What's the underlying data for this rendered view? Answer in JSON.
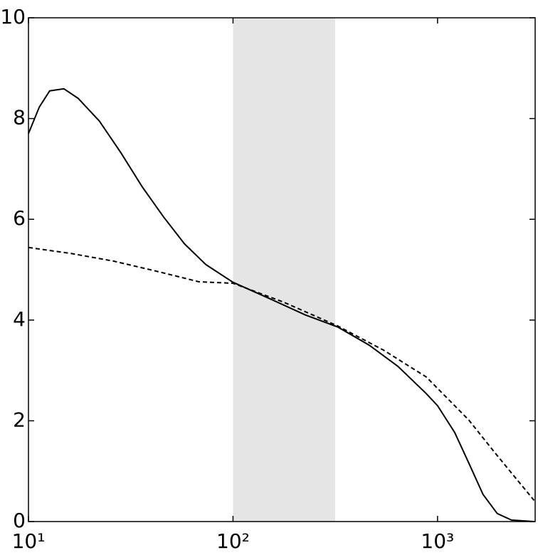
{
  "chart_data": {
    "type": "line",
    "xscale": "log",
    "xlim": [
      10,
      3000
    ],
    "ylim": [
      0,
      10
    ],
    "xticks": [
      {
        "value": 10,
        "label": "10¹"
      },
      {
        "value": 100,
        "label": "10²"
      },
      {
        "value": 1000,
        "label": "10³"
      }
    ],
    "yticks": [
      0,
      2,
      4,
      6,
      8,
      10
    ],
    "shaded_span": {
      "x": [
        100,
        316
      ],
      "color": "#e5e5e5"
    },
    "series": [
      {
        "color": "#000000",
        "dash": false,
        "x": [
          10,
          11.3,
          12.7,
          14.9,
          17.5,
          22.2,
          28.3,
          35.9,
          45.7,
          58,
          73.7,
          100,
          152,
          226,
          326,
          464,
          640,
          881,
          1000,
          1212,
          1419,
          1668,
          1957,
          2297,
          2965
        ],
        "values": [
          7.7,
          8.23,
          8.55,
          8.59,
          8.4,
          7.95,
          7.32,
          6.65,
          6.05,
          5.51,
          5.1,
          4.75,
          4.42,
          4.1,
          3.86,
          3.5,
          3.08,
          2.54,
          2.3,
          1.77,
          1.17,
          0.54,
          0.16,
          0.03,
          0
        ]
      },
      {
        "color": "#000000",
        "dash": true,
        "x": [
          10,
          16.2,
          26.1,
          42.2,
          68.1,
          100,
          178,
          326,
          546,
          881,
          1419,
          1957,
          2965
        ],
        "values": [
          5.44,
          5.32,
          5.17,
          4.97,
          4.76,
          4.73,
          4.35,
          3.88,
          3.4,
          2.87,
          2.02,
          1.31,
          0.42
        ]
      }
    ]
  }
}
